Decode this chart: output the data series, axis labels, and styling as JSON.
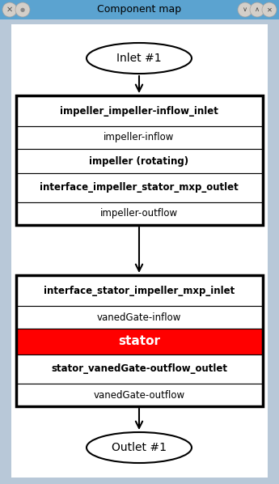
{
  "title": "Component map",
  "bg_color": "#c8d4e0",
  "inner_bg": "#ffffff",
  "box1_rows": [
    {
      "text": "impeller_impeller-inflow_inlet",
      "bold": true,
      "bg": "#ffffff",
      "fontsize": 8.5
    },
    {
      "text": "impeller-inflow",
      "bold": false,
      "bg": "#ffffff",
      "fontsize": 8.5
    },
    {
      "text": "impeller (rotating)",
      "bold": true,
      "bg": "#ffffff",
      "fontsize": 8.5
    },
    {
      "text": "interface_impeller_stator_mxp_outlet",
      "bold": true,
      "bg": "#ffffff",
      "fontsize": 8.5
    },
    {
      "text": "impeller-outflow",
      "bold": false,
      "bg": "#ffffff",
      "fontsize": 8.5
    }
  ],
  "box2_rows": [
    {
      "text": "interface_stator_impeller_mxp_inlet",
      "bold": true,
      "bg": "#ffffff",
      "fontsize": 8.5
    },
    {
      "text": "vanedGate-inflow",
      "bold": false,
      "bg": "#ffffff",
      "fontsize": 8.5
    },
    {
      "text": "stator",
      "bold": true,
      "bg": "#ff0000",
      "fontsize": 11,
      "text_color": "#ff0000"
    },
    {
      "text": "stator_vanedGate-outflow_outlet",
      "bold": true,
      "bg": "#ffffff",
      "fontsize": 8.5
    },
    {
      "text": "vanedGate-outflow",
      "bold": false,
      "bg": "#ffffff",
      "fontsize": 8.5
    }
  ],
  "inlet_label": "Inlet #1",
  "outlet_label": "Outlet #1",
  "titlebar_color": "#5ba3d0",
  "titlebar_text_color": "#000000"
}
